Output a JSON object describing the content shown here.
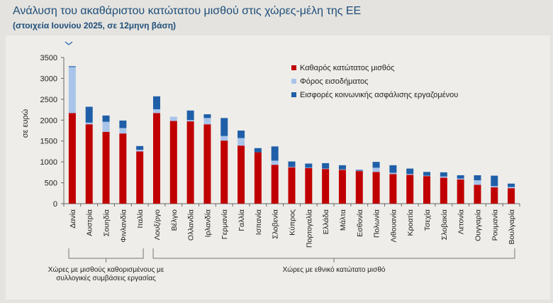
{
  "chart_data": {
    "type": "bar",
    "stacked": true,
    "title": "Ανάλυση του ακαθάριστου κατώτατου μισθού στις χώρες-μέλη της ΕΕ",
    "subtitle": "(στοιχεία Ιουνίου 2025, σε 12μηνη βάση)",
    "ylabel": "σε ευρώ",
    "ylim": [
      0,
      3500
    ],
    "yticks": [
      0,
      500,
      1000,
      1500,
      2000,
      2500,
      3000,
      3500
    ],
    "ytick_labels": [
      "0",
      "500",
      "1000",
      "1500",
      "2000",
      "2500",
      "3000",
      "3500"
    ],
    "legend_position": "top-right",
    "categories": [
      "Δανία",
      "Αυστρία",
      "Σουηδία",
      "Φινλανδία",
      "Ιταλία",
      "Λουξ/ργο",
      "Βέλγιο",
      "Ολλανδία",
      "Ιρλανδία",
      "Γερμανία",
      "Γαλλία",
      "Ισπανία",
      "Σλοβενία",
      "Κύπρος",
      "Πορτογαλία",
      "Ελλάδα",
      "Μάλτα",
      "Εσθονία",
      "Πολωνία",
      "Λιθουανία",
      "Κροατία",
      "Τσεχία",
      "Σλοβακία",
      "Λετονία",
      "Ουγγαρία",
      "Ρουμανία",
      "Βουλγαρία"
    ],
    "series": [
      {
        "name": "Καθαρός κατώτατος μισθός",
        "color": "#c00000",
        "values": [
          2170,
          1900,
          1720,
          1680,
          1250,
          2170,
          1980,
          1970,
          1900,
          1510,
          1390,
          1230,
          930,
          870,
          850,
          830,
          810,
          780,
          760,
          710,
          690,
          660,
          620,
          580,
          450,
          390,
          370
        ]
      },
      {
        "name": "Φόρος εισοδήματος",
        "color": "#a9c4ea",
        "values": [
          1100,
          40,
          240,
          130,
          40,
          90,
          100,
          30,
          150,
          110,
          180,
          0,
          100,
          10,
          10,
          10,
          10,
          10,
          100,
          30,
          20,
          10,
          30,
          20,
          110,
          30,
          30
        ]
      },
      {
        "name": "Εισφορές κοινωνικής ασφάλισης εργαζομένου",
        "color": "#1f5fa8",
        "values": [
          20,
          380,
          150,
          180,
          90,
          310,
          0,
          230,
          90,
          430,
          180,
          100,
          340,
          130,
          100,
          130,
          100,
          20,
          140,
          180,
          130,
          90,
          100,
          80,
          120,
          250,
          80
        ]
      }
    ],
    "groups": [
      {
        "label": "Χώρες με μισθούς καθορισμένους με συλλογικές συμβάσεις εργασίας",
        "from": 0,
        "to": 4
      },
      {
        "label": "Χώρες με εθνικό κατώτατο μισθό",
        "from": 5,
        "to": 26
      }
    ]
  },
  "header": {
    "title": "Ανάλυση του ακαθάριστου κατώτατου μισθού στις χώρες-μέλη της ΕΕ",
    "subtitle": "(στοιχεία Ιουνίου 2025, σε 12μηνη βάση)"
  },
  "group_labels": {
    "left_line1": "Χώρες με μισθούς καθορισμένους με",
    "left_line2": "συλλογικές συμβάσεις εργασίας",
    "right": "Χώρες με εθνικό κατώτατο μισθό"
  }
}
